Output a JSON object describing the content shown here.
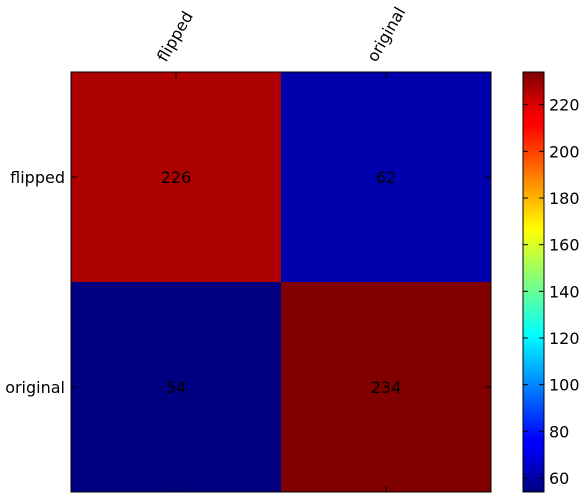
{
  "chart_data": {
    "type": "heatmap",
    "title": "",
    "xlabel": "",
    "ylabel": "",
    "x_categories": [
      "flipped",
      "original"
    ],
    "y_categories": [
      "flipped",
      "original"
    ],
    "values": [
      [
        226,
        62
      ],
      [
        54,
        234
      ]
    ],
    "colormap": "jet",
    "color_range": [
      54,
      234
    ],
    "colorbar": {
      "placement": "right",
      "ticks": [
        60,
        80,
        100,
        120,
        140,
        160,
        180,
        200,
        220
      ]
    },
    "grid": false
  }
}
